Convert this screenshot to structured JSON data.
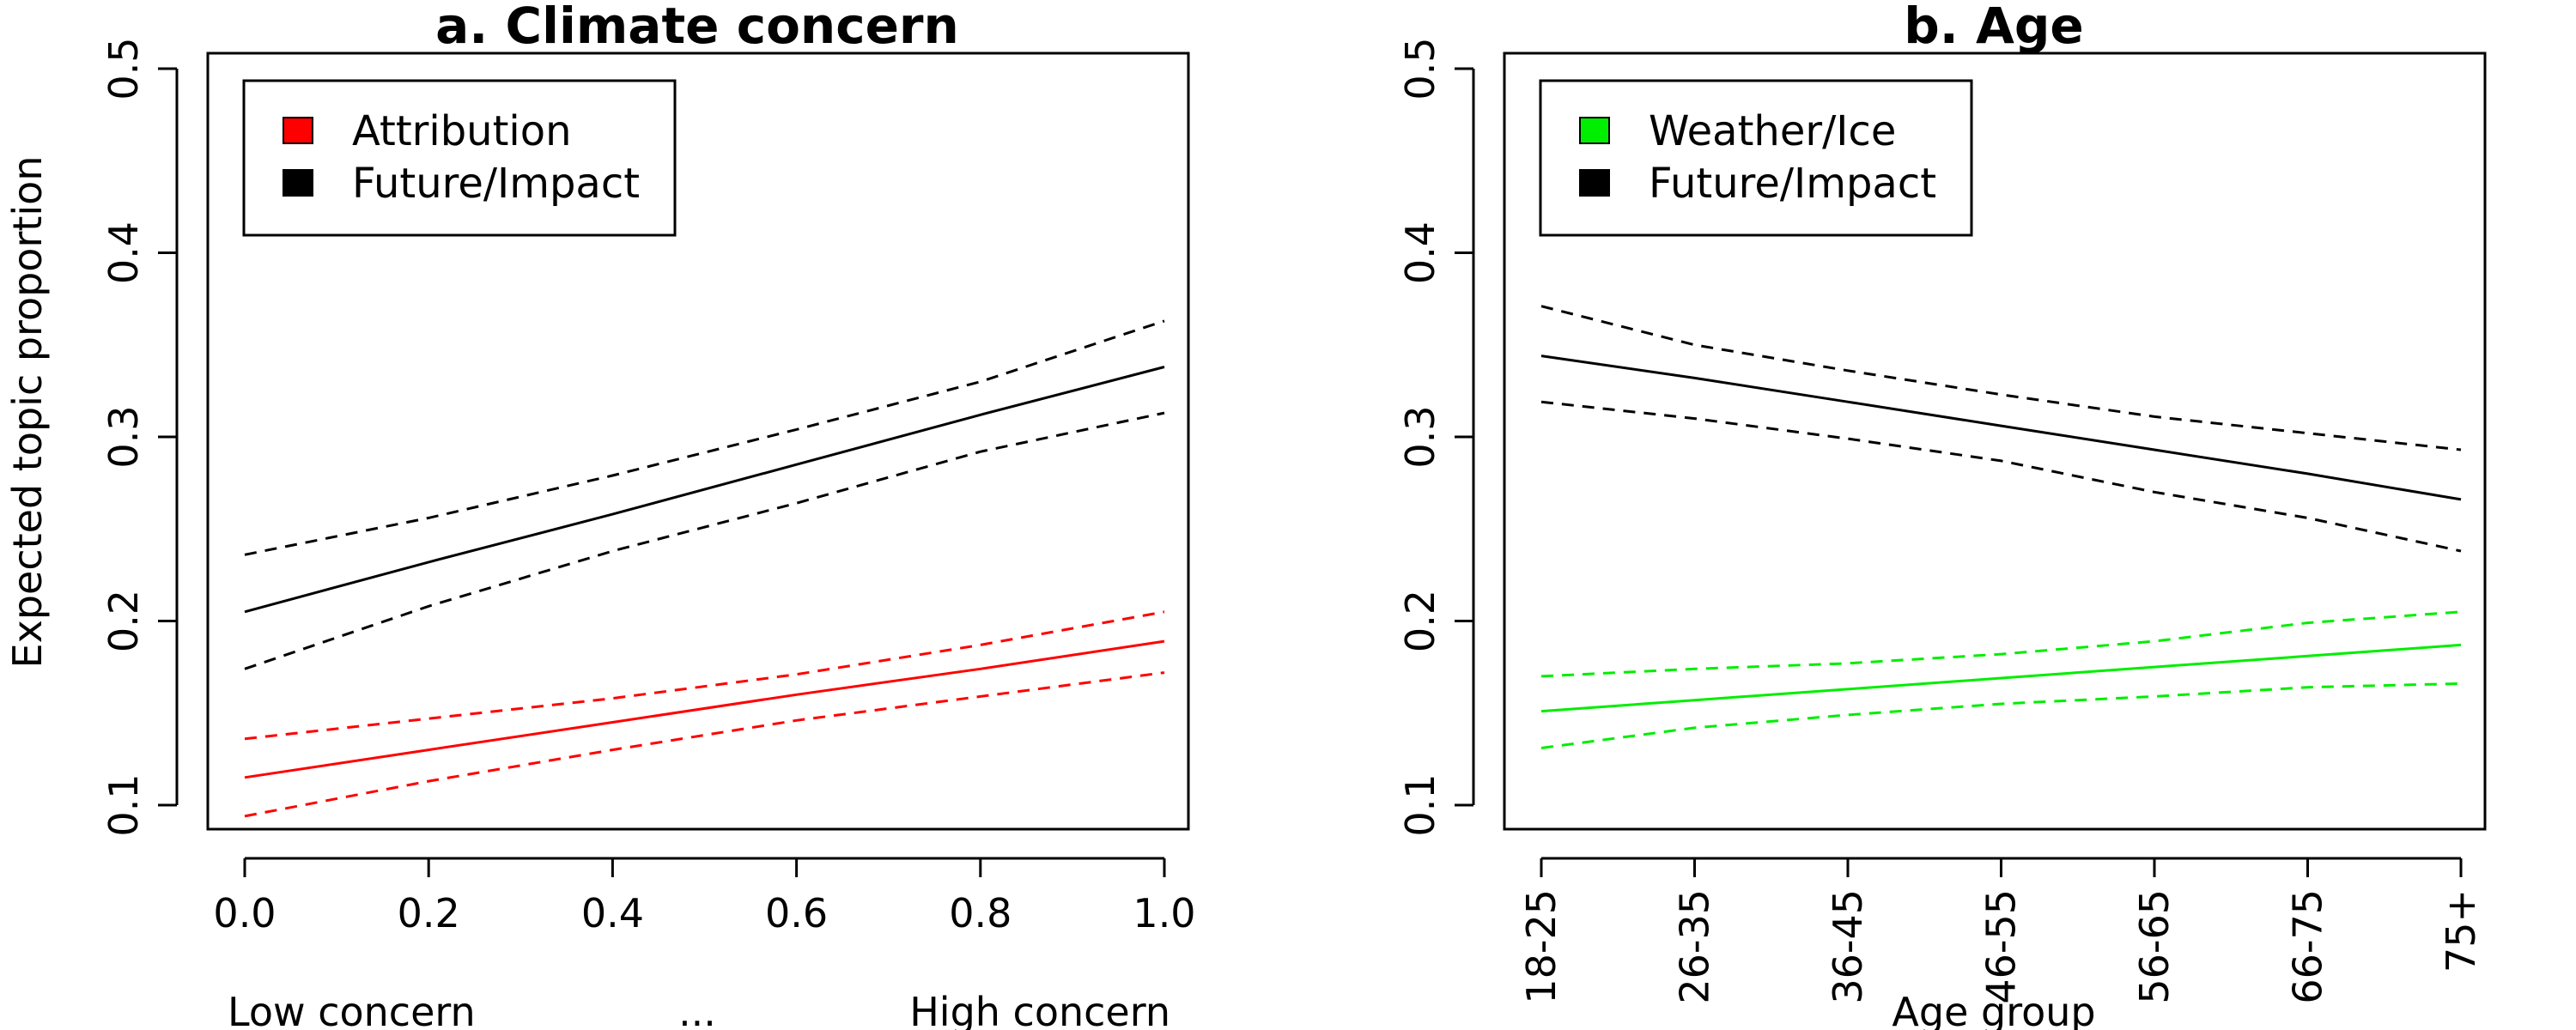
{
  "figure": {
    "ylabel": "Expected topic proportion"
  },
  "chart_data": [
    {
      "type": "line",
      "title": "a. Climate concern",
      "xlabel": "",
      "ylabel": "Expected topic proportion",
      "xlim": [
        0.0,
        1.0
      ],
      "ylim": [
        0.1,
        0.5
      ],
      "x_ticks": [
        "0.0",
        "0.2",
        "0.4",
        "0.6",
        "0.8",
        "1.0"
      ],
      "y_ticks": [
        "0.1",
        "0.2",
        "0.3",
        "0.4",
        "0.5"
      ],
      "x_annotation": [
        "Low concern",
        "...",
        "High concern"
      ],
      "legend": {
        "position": "top-left",
        "entries": [
          {
            "label": "Attribution",
            "color": "#ff0000"
          },
          {
            "label": "Future/Impact",
            "color": "#000000"
          }
        ]
      },
      "series": [
        {
          "name": "Attribution",
          "color": "#ff0000",
          "x": [
            0.0,
            0.2,
            0.4,
            0.6,
            0.8,
            1.0
          ],
          "mean": [
            0.115,
            0.13,
            0.145,
            0.16,
            0.174,
            0.189
          ],
          "lower": [
            0.094,
            0.113,
            0.13,
            0.146,
            0.159,
            0.172
          ],
          "upper": [
            0.136,
            0.147,
            0.158,
            0.171,
            0.187,
            0.205
          ]
        },
        {
          "name": "Future/Impact",
          "color": "#000000",
          "x": [
            0.0,
            0.2,
            0.4,
            0.6,
            0.8,
            1.0
          ],
          "mean": [
            0.205,
            0.232,
            0.258,
            0.285,
            0.312,
            0.338
          ],
          "lower": [
            0.174,
            0.208,
            0.238,
            0.264,
            0.292,
            0.313
          ],
          "upper": [
            0.236,
            0.256,
            0.279,
            0.304,
            0.33,
            0.363
          ]
        }
      ]
    },
    {
      "type": "line",
      "title": "b. Age",
      "xlabel": "Age group",
      "ylabel": "",
      "categories": [
        "18-25",
        "26-35",
        "36-45",
        "46-55",
        "56-65",
        "66-75",
        "75+"
      ],
      "ylim": [
        0.1,
        0.5
      ],
      "y_ticks": [
        "0.1",
        "0.2",
        "0.3",
        "0.4",
        "0.5"
      ],
      "legend": {
        "position": "top-left",
        "entries": [
          {
            "label": "Weather/Ice",
            "color": "#00ee00"
          },
          {
            "label": "Future/Impact",
            "color": "#000000"
          }
        ]
      },
      "series": [
        {
          "name": "Weather/Ice",
          "color": "#00ee00",
          "mean": [
            0.151,
            0.157,
            0.163,
            0.169,
            0.175,
            0.181,
            0.187
          ],
          "lower": [
            0.131,
            0.142,
            0.149,
            0.155,
            0.159,
            0.164,
            0.166
          ],
          "upper": [
            0.17,
            0.174,
            0.177,
            0.182,
            0.189,
            0.199,
            0.205
          ]
        },
        {
          "name": "Future/Impact",
          "color": "#000000",
          "mean": [
            0.344,
            0.332,
            0.319,
            0.306,
            0.293,
            0.28,
            0.266
          ],
          "lower": [
            0.319,
            0.31,
            0.299,
            0.287,
            0.27,
            0.256,
            0.238
          ],
          "upper": [
            0.371,
            0.35,
            0.336,
            0.323,
            0.311,
            0.302,
            0.293
          ]
        }
      ]
    }
  ]
}
